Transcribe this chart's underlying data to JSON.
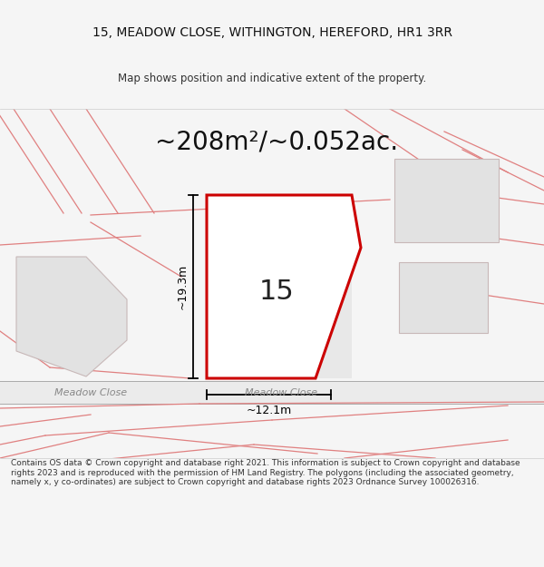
{
  "title_line1": "15, MEADOW CLOSE, WITHINGTON, HEREFORD, HR1 3RR",
  "title_line2": "Map shows position and indicative extent of the property.",
  "area_text": "~208m²/~0.052ac.",
  "label_15": "15",
  "label_height": "~19.3m",
  "label_width": "~12.1m",
  "road_label_left": "Meadow Close",
  "road_label_right": "Meadow Close",
  "footer_text": "Contains OS data © Crown copyright and database right 2021. This information is subject to Crown copyright and database rights 2023 and is reproduced with the permission of HM Land Registry. The polygons (including the associated geometry, namely x, y co-ordinates) are subject to Crown copyright and database rights 2023 Ordnance Survey 100026316.",
  "bg_color": "#f5f5f5",
  "map_bg": "#f5f5f5",
  "plot_outline_color": "#cc0000",
  "dim_line_color": "#000000",
  "road_line_color": "#aaaaaa",
  "pink_line_color": "#e08080"
}
